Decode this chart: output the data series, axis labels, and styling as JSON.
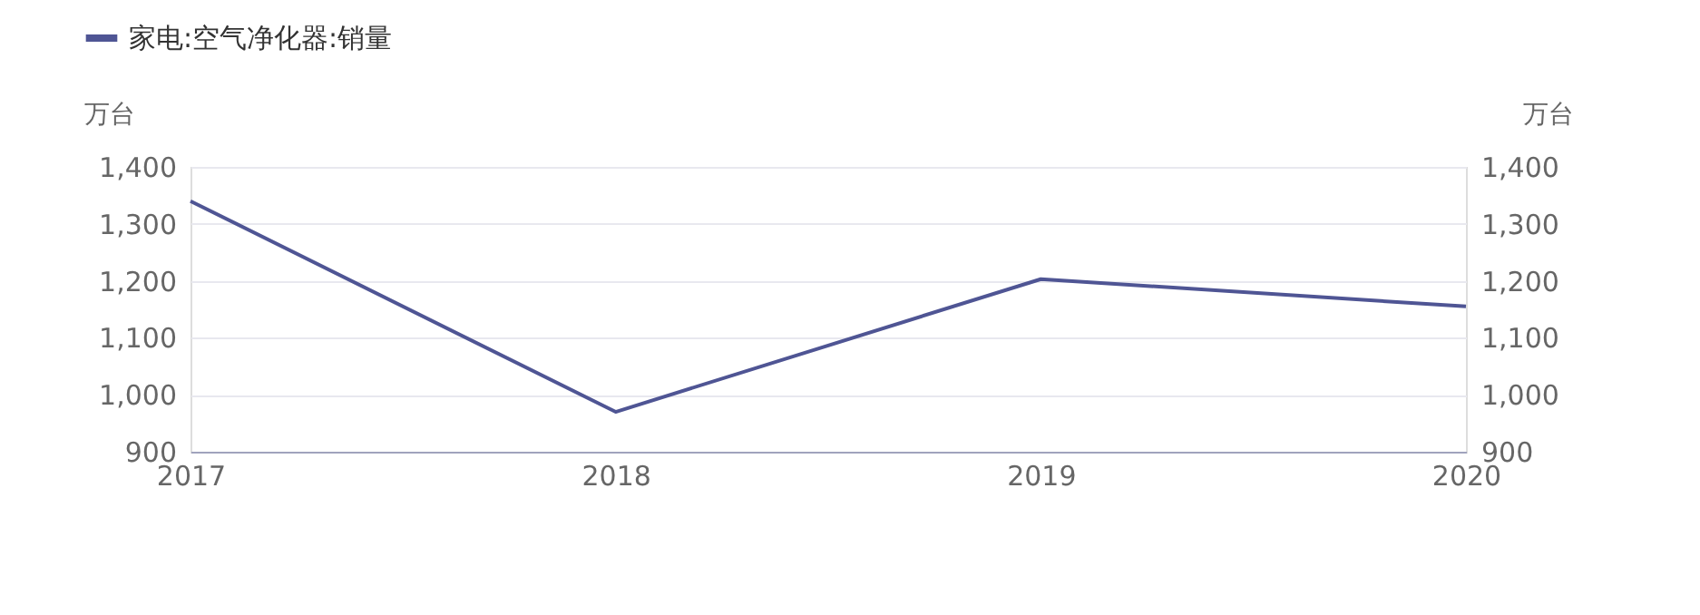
{
  "chart_data": {
    "type": "line",
    "x": [
      2017,
      2018,
      2019,
      2020
    ],
    "xlim": [
      2017,
      2020
    ],
    "xticks": [
      2017,
      2018,
      2019,
      2020
    ],
    "series": [
      {
        "name": "家电:空气净化器:销量",
        "color": "#4f5594",
        "values": [
          1340,
          970,
          1203,
          1155
        ]
      }
    ],
    "ylabel": "万台",
    "y2label": "万台",
    "ylim": [
      900,
      1400
    ],
    "yticks": [
      900,
      {
        "value": 1000,
        "label": "1,000"
      },
      {
        "value": 1100,
        "label": "1,100"
      },
      {
        "value": 1200,
        "label": "1,200"
      },
      {
        "value": 1300,
        "label": "1,300"
      },
      {
        "value": 1400,
        "label": "1,400"
      }
    ],
    "y2lim": [
      900,
      1400
    ],
    "y2ticks": [
      900,
      {
        "value": 1000,
        "label": "1,000"
      },
      {
        "value": 1100,
        "label": "1,100"
      },
      {
        "value": 1200,
        "label": "1,200"
      },
      {
        "value": 1300,
        "label": "1,300"
      },
      {
        "value": 1400,
        "label": "1,400"
      }
    ],
    "grid": "y",
    "legend": "top left",
    "marker": "none",
    "line_style": "solid"
  }
}
